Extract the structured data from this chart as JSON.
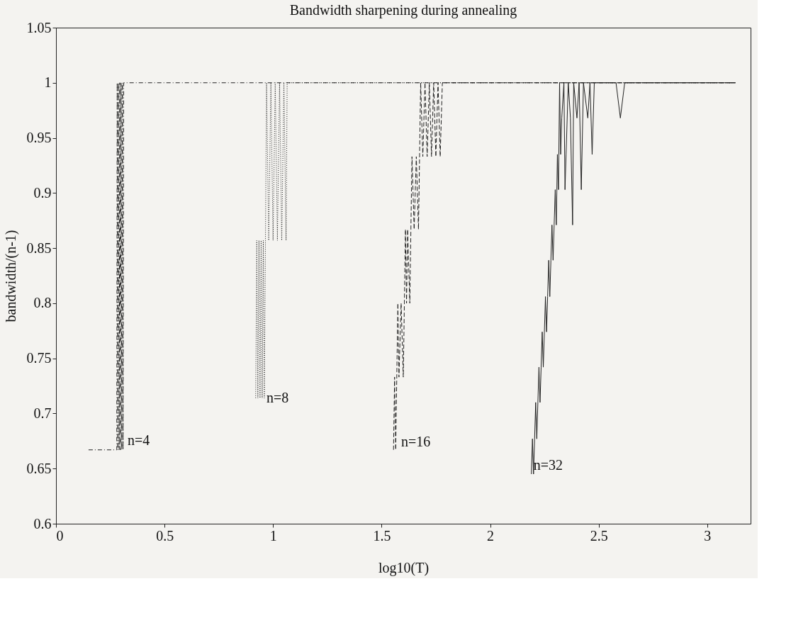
{
  "chart_data": {
    "type": "line",
    "title": "Bandwidth sharpening during annealing",
    "xlabel": "log10(T)",
    "ylabel": "bandwidth/(n-1)",
    "xlim": [
      0,
      3.2
    ],
    "xticks": [
      0,
      0.5,
      1,
      1.5,
      2,
      2.5,
      3
    ],
    "ylim": [
      0.6,
      1.05
    ],
    "yticks": [
      0.6,
      0.65,
      0.7,
      0.75,
      0.8,
      0.85,
      0.9,
      0.95,
      1,
      1.05
    ],
    "grid": false,
    "series": [
      {
        "color": "#222222",
        "line_style": "dashdot",
        "x": [
          0.15,
          0.28,
          0.282,
          0.285,
          0.288,
          0.291,
          0.294,
          0.297,
          0.3,
          0.303,
          0.306,
          0.309,
          0.312,
          3.13
        ],
        "values": [
          0.667,
          0.667,
          1,
          0.667,
          1,
          0.667,
          1,
          0.667,
          1,
          0.667,
          1,
          0.667,
          1,
          1
        ]
      },
      {
        "color": "#222222",
        "line_style": "dotted",
        "x": [
          0.92,
          0.925,
          0.93,
          0.935,
          0.94,
          0.945,
          0.95,
          0.955,
          0.96,
          0.965,
          0.97,
          0.98,
          0.99,
          1.0,
          1.01,
          1.02,
          1.03,
          1.04,
          1.05,
          1.06,
          1.065,
          3.13
        ],
        "values": [
          0.714,
          0.857,
          0.714,
          0.857,
          0.714,
          0.857,
          0.714,
          0.857,
          0.714,
          0.857,
          1,
          0.857,
          1,
          0.857,
          1,
          0.857,
          1,
          0.857,
          1,
          0.857,
          1,
          1
        ]
      },
      {
        "color": "#222222",
        "line_style": "dashed",
        "x": [
          1.555,
          1.56,
          1.565,
          1.57,
          1.575,
          1.58,
          1.59,
          1.6,
          1.605,
          1.61,
          1.615,
          1.62,
          1.63,
          1.635,
          1.64,
          1.65,
          1.66,
          1.67,
          1.675,
          1.68,
          1.69,
          1.7,
          1.71,
          1.72,
          1.73,
          1.74,
          1.75,
          1.76,
          1.77,
          1.78,
          3.13
        ],
        "values": [
          0.667,
          0.733,
          0.667,
          0.733,
          0.8,
          0.733,
          0.8,
          0.733,
          0.8,
          0.867,
          0.8,
          0.867,
          0.8,
          0.867,
          0.933,
          0.867,
          0.933,
          0.867,
          0.933,
          1,
          0.933,
          1,
          0.933,
          1,
          0.933,
          1,
          0.933,
          1,
          0.933,
          1,
          1
        ]
      },
      {
        "color": "#222222",
        "line_style": "solid",
        "x": [
          2.19,
          2.195,
          2.2,
          2.205,
          2.21,
          2.215,
          2.22,
          2.225,
          2.23,
          2.235,
          2.24,
          2.245,
          2.25,
          2.255,
          2.26,
          2.265,
          2.27,
          2.275,
          2.28,
          2.285,
          2.29,
          2.295,
          2.3,
          2.305,
          2.31,
          2.315,
          2.32,
          2.325,
          2.33,
          2.34,
          2.345,
          2.35,
          2.36,
          2.37,
          2.38,
          2.385,
          2.4,
          2.41,
          2.42,
          2.43,
          2.45,
          2.46,
          2.47,
          2.48,
          2.58,
          2.6,
          2.62,
          3.13
        ],
        "values": [
          0.645,
          0.677,
          0.645,
          0.677,
          0.71,
          0.677,
          0.71,
          0.742,
          0.71,
          0.742,
          0.774,
          0.742,
          0.774,
          0.806,
          0.774,
          0.806,
          0.839,
          0.806,
          0.839,
          0.871,
          0.839,
          0.871,
          0.903,
          0.871,
          0.935,
          0.903,
          1,
          0.935,
          0.968,
          1,
          0.903,
          0.935,
          1,
          0.968,
          0.871,
          1,
          0.968,
          1,
          0.903,
          1,
          0.968,
          1,
          0.935,
          1,
          1,
          0.968,
          1,
          1
        ]
      }
    ],
    "annotations": [
      {
        "text": "n=4",
        "x": 0.32,
        "y": 0.675
      },
      {
        "text": "n=8",
        "x": 0.96,
        "y": 0.714
      },
      {
        "text": "n=16",
        "x": 1.58,
        "y": 0.674
      },
      {
        "text": "n=32",
        "x": 2.19,
        "y": 0.653
      }
    ]
  }
}
